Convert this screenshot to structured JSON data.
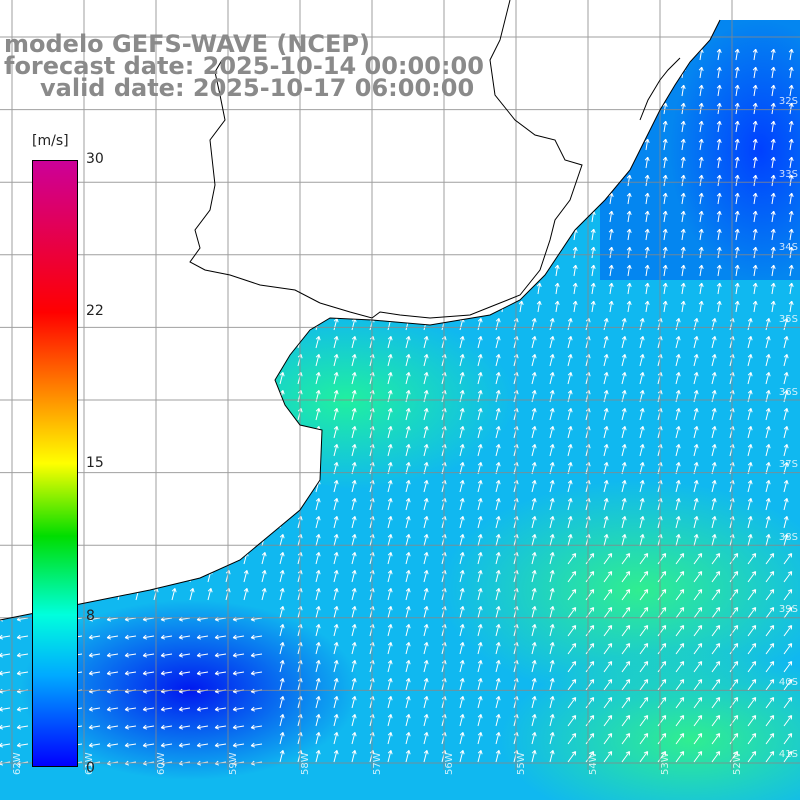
{
  "title": {
    "line1": "modelo GEFS-WAVE (NCEP)",
    "line2": "forecast date: 2025-10-14 00:00:00",
    "line3": "valid date: 2025-10-17 06:00:00"
  },
  "colorbar": {
    "unit": "[m/s]",
    "ticks": [
      "30",
      "22",
      "15",
      "8",
      "0"
    ],
    "colors": [
      "#cc0099",
      "#ff0000",
      "#ff9900",
      "#ffff00",
      "#00dd00",
      "#00ffdd",
      "#00aaff",
      "#0000ff"
    ]
  },
  "grid": {
    "lat_labels": [
      "32S",
      "33S",
      "34S",
      "35S",
      "36S",
      "37S",
      "38S",
      "39S",
      "40S",
      "41S"
    ],
    "lon_labels": [
      "62W",
      "61W",
      "60W",
      "59W",
      "58W",
      "57W",
      "56W",
      "55W",
      "54W",
      "53W",
      "52W"
    ]
  },
  "map_colors": {
    "land": "#ffffff",
    "coast": "#000000",
    "grid_line": "#888888",
    "vector": "#ffffff"
  }
}
